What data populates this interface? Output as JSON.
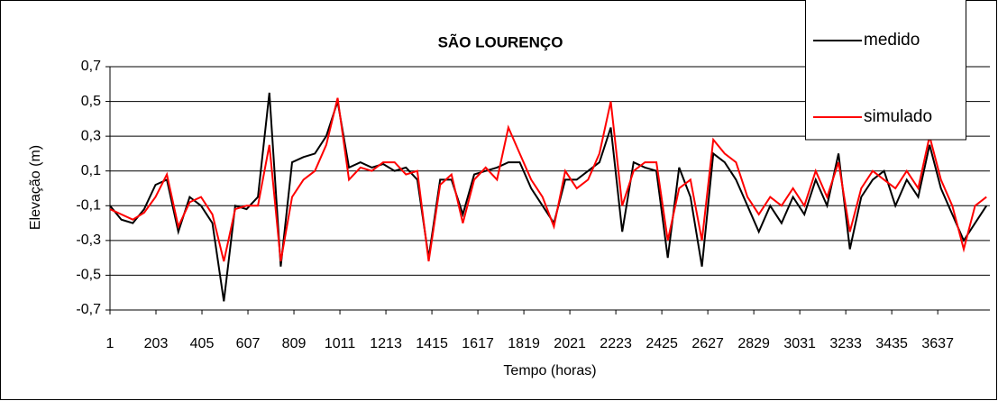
{
  "chart_data": {
    "type": "line",
    "title": "SÃO LOURENÇO",
    "xlabel": "Tempo (horas)",
    "ylabel": "Elevação (m)",
    "x": [
      1,
      51,
      101,
      151,
      201,
      251,
      301,
      351,
      401,
      451,
      501,
      551,
      601,
      651,
      701,
      751,
      801,
      851,
      901,
      951,
      1001,
      1051,
      1101,
      1151,
      1201,
      1251,
      1301,
      1351,
      1401,
      1451,
      1501,
      1551,
      1601,
      1651,
      1701,
      1751,
      1801,
      1851,
      1901,
      1951,
      2001,
      2051,
      2101,
      2151,
      2201,
      2251,
      2301,
      2351,
      2401,
      2451,
      2501,
      2551,
      2601,
      2651,
      2701,
      2751,
      2801,
      2851,
      2901,
      2951,
      3001,
      3051,
      3101,
      3151,
      3201,
      3251,
      3301,
      3351,
      3401,
      3451,
      3501,
      3551,
      3601,
      3651,
      3701,
      3751,
      3801,
      3851
    ],
    "series": [
      {
        "name": "medido",
        "color": "#000000",
        "values": [
          -0.1,
          -0.18,
          -0.2,
          -0.12,
          0.02,
          0.05,
          -0.25,
          -0.05,
          -0.1,
          -0.2,
          -0.65,
          -0.1,
          -0.12,
          -0.05,
          0.55,
          -0.45,
          0.15,
          0.18,
          0.2,
          0.3,
          0.5,
          0.12,
          0.15,
          0.12,
          0.14,
          0.1,
          0.12,
          0.05,
          -0.4,
          0.05,
          0.05,
          -0.15,
          0.08,
          0.1,
          0.12,
          0.15,
          0.15,
          0.0,
          -0.1,
          -0.2,
          0.05,
          0.05,
          0.1,
          0.15,
          0.35,
          -0.25,
          0.15,
          0.12,
          0.1,
          -0.4,
          0.12,
          -0.05,
          -0.45,
          0.2,
          0.15,
          0.05,
          -0.1,
          -0.25,
          -0.1,
          -0.2,
          -0.05,
          -0.15,
          0.05,
          -0.1,
          0.2,
          -0.35,
          -0.05,
          0.05,
          0.1,
          -0.1,
          0.05,
          -0.05,
          0.25,
          0.0,
          -0.15,
          -0.3,
          -0.2,
          -0.1
        ]
      },
      {
        "name": "simulado",
        "color": "#ff0000",
        "values": [
          -0.12,
          -0.15,
          -0.18,
          -0.14,
          -0.05,
          0.08,
          -0.22,
          -0.08,
          -0.05,
          -0.15,
          -0.42,
          -0.12,
          -0.1,
          -0.1,
          0.25,
          -0.42,
          -0.05,
          0.05,
          0.1,
          0.25,
          0.52,
          0.05,
          0.12,
          0.1,
          0.15,
          0.15,
          0.08,
          0.1,
          -0.42,
          0.02,
          0.08,
          -0.2,
          0.05,
          0.12,
          0.05,
          0.35,
          0.2,
          0.05,
          -0.05,
          -0.22,
          0.1,
          0.0,
          0.05,
          0.2,
          0.5,
          -0.1,
          0.1,
          0.15,
          0.15,
          -0.3,
          0.0,
          0.05,
          -0.3,
          0.28,
          0.2,
          0.15,
          -0.05,
          -0.15,
          -0.05,
          -0.1,
          0.0,
          -0.1,
          0.1,
          -0.05,
          0.15,
          -0.25,
          0.0,
          0.1,
          0.05,
          0.0,
          0.1,
          0.0,
          0.3,
          0.05,
          -0.1,
          -0.35,
          -0.1,
          -0.05
        ]
      }
    ],
    "xlim": [
      1,
      3866
    ],
    "xticks": [
      1,
      203,
      405,
      607,
      809,
      1011,
      1213,
      1415,
      1617,
      1819,
      2021,
      2223,
      2425,
      2627,
      2829,
      3031,
      3233,
      3435,
      3637
    ],
    "ylim": [
      -0.7,
      0.7
    ],
    "yticks": [
      {
        "value": -0.7,
        "label": "-0,7"
      },
      {
        "value": -0.5,
        "label": "-0,5"
      },
      {
        "value": -0.3,
        "label": "-0,3"
      },
      {
        "value": -0.1,
        "label": "-0,1"
      },
      {
        "value": 0.1,
        "label": "0,1"
      },
      {
        "value": 0.3,
        "label": "0,3"
      },
      {
        "value": 0.5,
        "label": "0,5"
      },
      {
        "value": 0.7,
        "label": "0,7"
      }
    ],
    "grid": true,
    "legend": "upper right"
  }
}
